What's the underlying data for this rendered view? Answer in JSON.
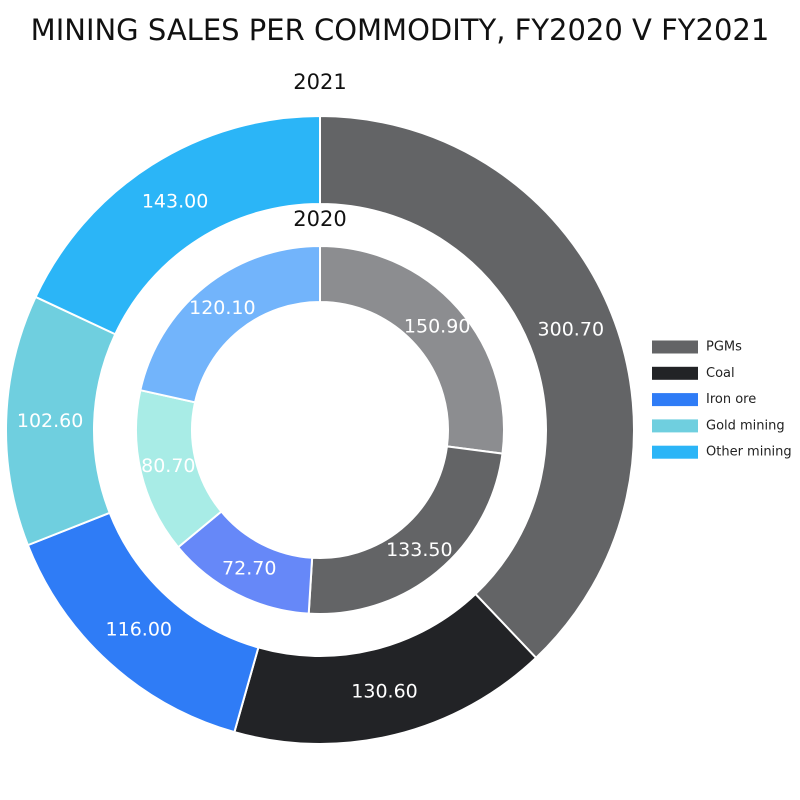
{
  "chart_data": {
    "type": "donut",
    "title": "MINING SALES PER COMMODITY, FY2020 V FY2021",
    "categories": [
      "PGMs",
      "Coal",
      "Iron ore",
      "Gold mining",
      "Other mining"
    ],
    "series": [
      {
        "name": "2021",
        "values": [
          300.7,
          130.6,
          116.0,
          102.6,
          143.0
        ],
        "value_labels": [
          "300.70",
          "130.60",
          "116.00",
          "102.60",
          "143.00"
        ],
        "colors": [
          "#636466",
          "#222326",
          "#2f7cf6",
          "#6fcfdf",
          "#2bb5f7"
        ]
      },
      {
        "name": "2020",
        "values": [
          150.9,
          133.5,
          72.7,
          80.7,
          120.1
        ],
        "value_labels": [
          "150.90",
          "133.50",
          "72.70",
          "80.70",
          "120.10"
        ],
        "colors": [
          "#8c8d90",
          "#636466",
          "#6688f8",
          "#a8ece6",
          "#72b4fb"
        ]
      }
    ],
    "legend": "right"
  }
}
